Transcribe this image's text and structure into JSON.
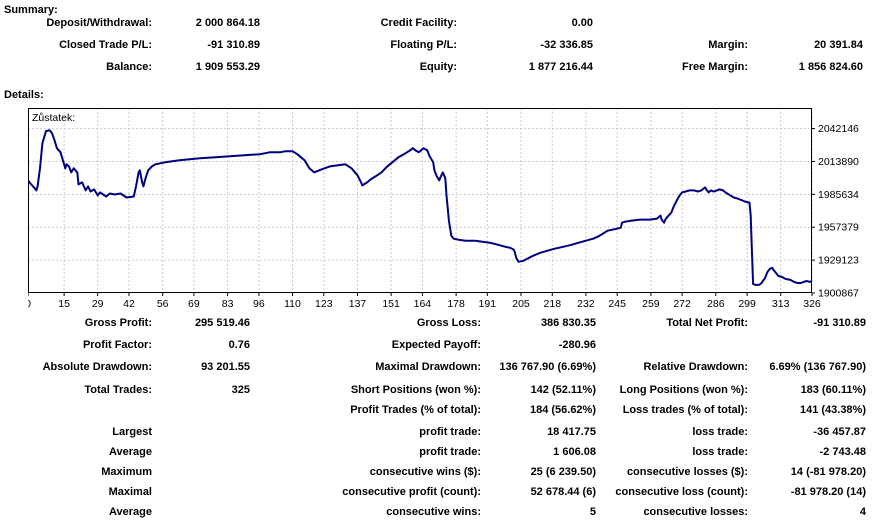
{
  "summary": {
    "title": "Summary:",
    "rows": [
      {
        "cells": [
          "Deposit/Withdrawal:",
          "2 000 864.18",
          "Credit Facility:",
          "0.00",
          "",
          ""
        ]
      },
      {
        "cells": [
          "Closed Trade P/L:",
          "-91 310.89",
          "Floating P/L:",
          "-32 336.85",
          "Margin:",
          "20 391.84"
        ]
      },
      {
        "cells": [
          "Balance:",
          "1 909 553.29",
          "Equity:",
          "1 877 216.44",
          "Free Margin:",
          "1 856 824.60"
        ]
      }
    ]
  },
  "details": {
    "title": "Details:",
    "rows": [
      {
        "cells": [
          "Gross Profit:",
          "295 519.46",
          "Gross Loss:",
          "386 830.35",
          "Total Net Profit:",
          "-91 310.89"
        ]
      },
      {
        "cells": [
          "Profit Factor:",
          "0.76",
          "Expected Payoff:",
          "-280.96",
          "",
          ""
        ]
      },
      {
        "cells": [
          "Absolute Drawdown:",
          "93 201.55",
          "Maximal Drawdown:",
          "136 767.90 (6.69%)",
          "Relative Drawdown:",
          "6.69% (136 767.90)"
        ]
      },
      {
        "cells": [
          "Total Trades:",
          "325",
          "Short Positions (won %):",
          "142 (52.11%)",
          "Long Positions (won %):",
          "183 (60.11%)"
        ]
      },
      {
        "cells": [
          "",
          "",
          "Profit Trades (% of total):",
          "184 (56.62%)",
          "Loss trades (% of total):",
          "141 (43.38%)"
        ]
      },
      {
        "cells": [
          "Largest",
          "",
          "profit trade:",
          "18 417.75",
          "loss trade:",
          "-36 457.87"
        ]
      },
      {
        "cells": [
          "Average",
          "",
          "profit trade:",
          "1 606.08",
          "loss trade:",
          "-2 743.48"
        ]
      },
      {
        "cells": [
          "Maximum",
          "",
          "consecutive wins ($):",
          "25 (6 239.50)",
          "consecutive losses ($):",
          "14 (-81 978.20)"
        ]
      },
      {
        "cells": [
          "Maximal",
          "",
          "consecutive profit (count):",
          "52 678.44 (6)",
          "consecutive loss (count):",
          "-81 978.20 (14)"
        ]
      },
      {
        "cells": [
          "Average",
          "",
          "consecutive wins:",
          "5",
          "consecutive losses:",
          "4"
        ]
      }
    ]
  },
  "colors": {
    "line": "#000080",
    "grid": "#c9c9c9",
    "text": "#000000",
    "background": "#ffffff"
  },
  "chart_data": {
    "type": "line",
    "title": "Zůstatek:",
    "xlabel": "",
    "ylabel": "",
    "legend": "none",
    "grid": "dashed",
    "xlim": [
      0,
      326
    ],
    "ylim": [
      1900867,
      2059843
    ],
    "x_ticks": [
      0,
      15,
      29,
      42,
      56,
      69,
      83,
      96,
      110,
      123,
      137,
      151,
      164,
      178,
      191,
      205,
      218,
      232,
      245,
      259,
      272,
      286,
      299,
      313,
      326
    ],
    "y_ticks": [
      1900867,
      1929123,
      1957379,
      1985634,
      2013890,
      2042146
    ],
    "series": [
      {
        "name": "Zůstatek",
        "color": "#000080",
        "points": [
          [
            0,
            1997600
          ],
          [
            1,
            1995000
          ],
          [
            2.5,
            1991600
          ],
          [
            3.5,
            1989000
          ],
          [
            4,
            1992500
          ],
          [
            5,
            2008000
          ],
          [
            6,
            2029600
          ],
          [
            7.5,
            2040000
          ],
          [
            9,
            2040800
          ],
          [
            10,
            2038200
          ],
          [
            11,
            2032200
          ],
          [
            12,
            2025300
          ],
          [
            13.5,
            2021800
          ],
          [
            14.5,
            2014900
          ],
          [
            15.5,
            2008000
          ],
          [
            16,
            2011500
          ],
          [
            17,
            2009700
          ],
          [
            18,
            2004500
          ],
          [
            19,
            2008000
          ],
          [
            20.5,
            2004500
          ],
          [
            21,
            1994200
          ],
          [
            22.5,
            1995900
          ],
          [
            24,
            1989000
          ],
          [
            25,
            1992500
          ],
          [
            26,
            1988100
          ],
          [
            27.5,
            1989900
          ],
          [
            29,
            1984700
          ],
          [
            30,
            1987300
          ],
          [
            32.5,
            1983800
          ],
          [
            34,
            1986400
          ],
          [
            36,
            1985500
          ],
          [
            38.5,
            1986400
          ],
          [
            41,
            1982900
          ],
          [
            44,
            1983800
          ],
          [
            45,
            1993300
          ],
          [
            46,
            2004500
          ],
          [
            46.5,
            2006300
          ],
          [
            47.5,
            1995900
          ],
          [
            48,
            1992500
          ],
          [
            49,
            2000200
          ],
          [
            50,
            2006300
          ],
          [
            51.5,
            2009700
          ],
          [
            53,
            2011500
          ],
          [
            57,
            2013200
          ],
          [
            63,
            2014900
          ],
          [
            71.5,
            2016600
          ],
          [
            78,
            2017500
          ],
          [
            84,
            2018400
          ],
          [
            90,
            2019200
          ],
          [
            96.5,
            2020100
          ],
          [
            100.5,
            2021800
          ],
          [
            105,
            2021800
          ],
          [
            107,
            2022700
          ],
          [
            110,
            2022700
          ],
          [
            112,
            2020100
          ],
          [
            115,
            2014900
          ],
          [
            117,
            2008000
          ],
          [
            119,
            2004500
          ],
          [
            122,
            2007100
          ],
          [
            125.5,
            2009700
          ],
          [
            129,
            2010600
          ],
          [
            132,
            2011500
          ],
          [
            134.5,
            2008000
          ],
          [
            137,
            2002000
          ],
          [
            138.5,
            1995900
          ],
          [
            139,
            1993300
          ],
          [
            141,
            1995900
          ],
          [
            142.5,
            1998500
          ],
          [
            144.5,
            2001100
          ],
          [
            147,
            2004500
          ],
          [
            149,
            2008900
          ],
          [
            151.5,
            2013200
          ],
          [
            154,
            2017500
          ],
          [
            157,
            2021000
          ],
          [
            159,
            2023600
          ],
          [
            160,
            2025300
          ],
          [
            161,
            2023600
          ],
          [
            162.5,
            2021800
          ],
          [
            163.5,
            2023600
          ],
          [
            164.5,
            2025300
          ],
          [
            166,
            2023600
          ],
          [
            167,
            2018400
          ],
          [
            168.5,
            2013200
          ],
          [
            169,
            2006300
          ],
          [
            170,
            2001100
          ],
          [
            171,
            1997600
          ],
          [
            171.5,
            2000200
          ],
          [
            172.5,
            2004500
          ],
          [
            173.5,
            1999400
          ],
          [
            174,
            1984700
          ],
          [
            175,
            1963100
          ],
          [
            176,
            1950100
          ],
          [
            177,
            1947500
          ],
          [
            179,
            1946700
          ],
          [
            182,
            1945800
          ],
          [
            186,
            1945800
          ],
          [
            189,
            1944900
          ],
          [
            192,
            1944100
          ],
          [
            195.5,
            1942300
          ],
          [
            198.5,
            1940600
          ],
          [
            200.5,
            1939700
          ],
          [
            202,
            1938000
          ],
          [
            202.5,
            1935400
          ],
          [
            203,
            1931100
          ],
          [
            204,
            1927700
          ],
          [
            206,
            1928500
          ],
          [
            207.5,
            1930200
          ],
          [
            210,
            1932800
          ],
          [
            213,
            1935400
          ],
          [
            216,
            1937200
          ],
          [
            219,
            1938900
          ],
          [
            222.5,
            1940600
          ],
          [
            226,
            1942300
          ],
          [
            229,
            1944100
          ],
          [
            232,
            1945800
          ],
          [
            235,
            1947500
          ],
          [
            237,
            1949300
          ],
          [
            239,
            1951800
          ],
          [
            241,
            1954400
          ],
          [
            243,
            1955300
          ],
          [
            245,
            1956200
          ],
          [
            246.5,
            1957000
          ],
          [
            247,
            1961300
          ],
          [
            248.5,
            1962200
          ],
          [
            251,
            1963100
          ],
          [
            254.5,
            1963900
          ],
          [
            258.5,
            1963900
          ],
          [
            261.5,
            1964800
          ],
          [
            263,
            1967400
          ],
          [
            263.5,
            1963900
          ],
          [
            264.5,
            1961300
          ],
          [
            265,
            1963900
          ],
          [
            266,
            1966500
          ],
          [
            267.5,
            1970000
          ],
          [
            268.5,
            1975200
          ],
          [
            270,
            1981200
          ],
          [
            271,
            1984700
          ],
          [
            272,
            1987300
          ],
          [
            273.5,
            1988100
          ],
          [
            275,
            1989000
          ],
          [
            277,
            1989000
          ],
          [
            278.5,
            1988100
          ],
          [
            280,
            1989000
          ],
          [
            281.5,
            1991600
          ],
          [
            282,
            1989900
          ],
          [
            283,
            1987300
          ],
          [
            284,
            1989000
          ],
          [
            285,
            1988100
          ],
          [
            286.5,
            1989000
          ],
          [
            287.5,
            1989900
          ],
          [
            289,
            1989000
          ],
          [
            290,
            1987300
          ],
          [
            292,
            1984700
          ],
          [
            293.5,
            1982900
          ],
          [
            295,
            1982100
          ],
          [
            297,
            1980400
          ],
          [
            298,
            1979500
          ],
          [
            299.5,
            1978600
          ],
          [
            300,
            1978600
          ],
          [
            300.5,
            1967400
          ],
          [
            301,
            1937200
          ],
          [
            301.5,
            1908600
          ],
          [
            302.5,
            1907800
          ],
          [
            304,
            1907800
          ],
          [
            305,
            1909500
          ],
          [
            306.5,
            1913800
          ],
          [
            307.5,
            1919000
          ],
          [
            308.5,
            1921600
          ],
          [
            309.5,
            1922500
          ],
          [
            310,
            1920700
          ],
          [
            311,
            1918100
          ],
          [
            312,
            1915600
          ],
          [
            313.5,
            1914700
          ],
          [
            315,
            1913000
          ],
          [
            317,
            1912100
          ],
          [
            318.5,
            1910400
          ],
          [
            320,
            1909500
          ],
          [
            321.5,
            1909500
          ],
          [
            322.5,
            1910400
          ],
          [
            324,
            1911200
          ],
          [
            325,
            1910400
          ],
          [
            326,
            1911200
          ]
        ]
      }
    ]
  }
}
